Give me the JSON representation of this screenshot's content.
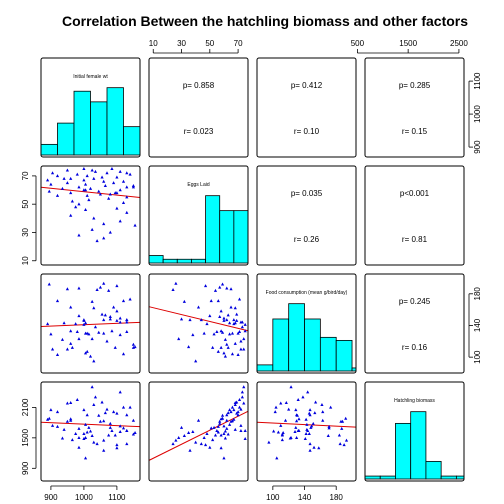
{
  "chart_data": {
    "type": "scatter-matrix",
    "title": "Correlation Between the hatchling biomass and other factors",
    "variables": [
      "Initial female wt",
      "Eggs Laid",
      "Food consumption (mean g/bird/day)",
      "Hatchling biomass"
    ],
    "ranges": [
      [
        870,
        1170
      ],
      [
        7,
        77
      ],
      [
        80,
        205
      ],
      [
        650,
        2600
      ]
    ],
    "axis_ticks": {
      "bottom": [
        [
          900,
          1000,
          1100
        ],
        null,
        [
          100,
          140,
          180
        ],
        null
      ],
      "top": [
        null,
        [
          10,
          30,
          50,
          70
        ],
        null,
        [
          500,
          1500,
          2500
        ]
      ],
      "left": [
        null,
        [
          10,
          30,
          50,
          70
        ],
        null,
        [
          900,
          1500,
          2100
        ]
      ],
      "right": [
        [
          900,
          1000,
          1100
        ],
        null,
        [
          100,
          140,
          180
        ],
        null
      ]
    },
    "correlations": [
      {
        "row": 0,
        "col": 1,
        "p": "p= 0.858",
        "r": "r= 0.023"
      },
      {
        "row": 0,
        "col": 2,
        "p": "p= 0.412",
        "r": "r= 0.10"
      },
      {
        "row": 0,
        "col": 3,
        "p": "p= 0.285",
        "r": "r= 0.15"
      },
      {
        "row": 1,
        "col": 2,
        "p": "p= 0.035",
        "r": "r= 0.26"
      },
      {
        "row": 1,
        "col": 3,
        "p": "p<0.001",
        "r": "r= 0.81"
      },
      {
        "row": 2,
        "col": 3,
        "p": "p= 0.245",
        "r": "r= 0.16"
      }
    ],
    "histograms": [
      {
        "bins": [
          870,
          920,
          970,
          1020,
          1070,
          1120,
          1170
        ],
        "counts": [
          3,
          9,
          18,
          15,
          19,
          8
        ]
      },
      {
        "bins": [
          7,
          17,
          27,
          37,
          47,
          57,
          67,
          77
        ],
        "counts": [
          2,
          1,
          1,
          1,
          18,
          14,
          14
        ]
      },
      {
        "bins": [
          80,
          100,
          120,
          140,
          160,
          180,
          200,
          205
        ],
        "counts": [
          2,
          17,
          22,
          17,
          11,
          10,
          1
        ]
      },
      {
        "bins": [
          650,
          950,
          1250,
          1550,
          1850,
          2150,
          2450,
          2600
        ],
        "counts": [
          1,
          1,
          19,
          23,
          6,
          1,
          1
        ]
      }
    ],
    "observations": [
      [
        1040,
        24,
        185,
        1380
      ],
      [
        1060,
        26,
        193,
        1450
      ],
      [
        985,
        28,
        123,
        1500
      ],
      [
        1080,
        30,
        148,
        1700
      ],
      [
        1025,
        32,
        170,
        1540
      ],
      [
        1155,
        35,
        113,
        1600
      ],
      [
        1110,
        38,
        128,
        1620
      ],
      [
        1030,
        40,
        95,
        1410
      ],
      [
        960,
        42,
        163,
        1840
      ],
      [
        1130,
        44,
        147,
        1380
      ],
      [
        1005,
        46,
        130,
        1500
      ],
      [
        1100,
        47,
        190,
        1360
      ],
      [
        975,
        48,
        142,
        1580
      ],
      [
        985,
        50,
        152,
        1310
      ],
      [
        1120,
        51,
        171,
        1690
      ],
      [
        965,
        52,
        112,
        1460
      ],
      [
        1015,
        53,
        129,
        1700
      ],
      [
        1075,
        54,
        184,
        1550
      ],
      [
        1130,
        55,
        132,
        1640
      ],
      [
        920,
        56,
        171,
        1720
      ],
      [
        1010,
        56,
        107,
        1610
      ],
      [
        1080,
        57,
        151,
        1780
      ],
      [
        1050,
        57,
        188,
        1820
      ],
      [
        960,
        58,
        133,
        1870
      ],
      [
        1095,
        58,
        112,
        1550
      ],
      [
        895,
        59,
        192,
        1880
      ],
      [
        1045,
        59,
        131,
        1940
      ],
      [
        1000,
        60,
        146,
        1580
      ],
      [
        1110,
        60,
        149,
        1730
      ],
      [
        935,
        61,
        122,
        1490
      ],
      [
        1020,
        61,
        101,
        1630
      ],
      [
        1130,
        62,
        147,
        1950
      ],
      [
        985,
        62,
        187,
        1680
      ],
      [
        1065,
        63,
        153,
        1990
      ],
      [
        1150,
        63,
        112,
        1570
      ],
      [
        900,
        64,
        129,
        2050
      ],
      [
        1005,
        64,
        143,
        1760
      ],
      [
        1090,
        65,
        163,
        2010
      ],
      [
        950,
        65,
        186,
        1820
      ],
      [
        1060,
        66,
        130,
        1830
      ],
      [
        1120,
        66,
        104,
        2100
      ],
      [
        890,
        67,
        142,
        1860
      ],
      [
        1000,
        67,
        147,
        2050
      ],
      [
        1030,
        68,
        162,
        2150
      ],
      [
        960,
        68,
        117,
        2190
      ],
      [
        1100,
        69,
        146,
        1980
      ],
      [
        1055,
        69,
        154,
        2200
      ],
      [
        920,
        70,
        103,
        2010
      ],
      [
        1010,
        70,
        130,
        1950
      ],
      [
        1140,
        71,
        173,
        2100
      ],
      [
        980,
        71,
        132,
        2250
      ],
      [
        1070,
        72,
        120,
        2060
      ],
      [
        905,
        72,
        110,
        1740
      ],
      [
        1035,
        73,
        138,
        2300
      ],
      [
        1110,
        73,
        144,
        2400
      ],
      [
        950,
        74,
        110,
        2180
      ],
      [
        1025,
        74,
        123,
        2500
      ],
      [
        1085,
        75,
        133,
        1640
      ],
      [
        1000,
        75,
        141,
        1480
      ],
      [
        1130,
        72,
        144,
        1640
      ],
      [
        940,
        68,
        143,
        1660
      ],
      [
        1150,
        62,
        116,
        1840
      ],
      [
        1005,
        60,
        105,
        1100
      ],
      [
        1100,
        58,
        158,
        1300
      ],
      [
        1060,
        36,
        147,
        1250
      ]
    ]
  }
}
